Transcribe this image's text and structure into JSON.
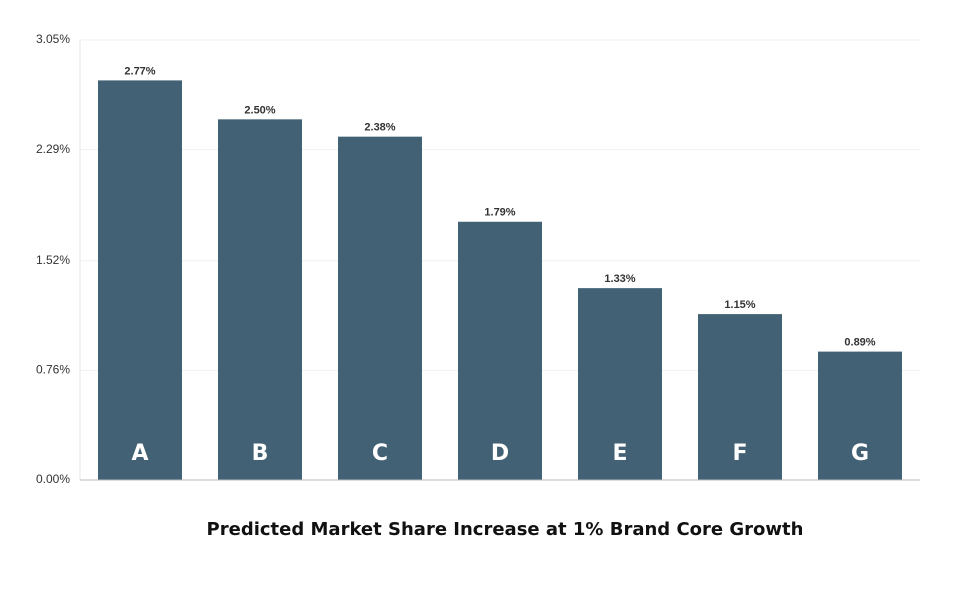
{
  "chart_data": {
    "type": "bar",
    "title": "Predicted Market Share Increase at 1% Brand Core Growth",
    "categories": [
      "A",
      "B",
      "C",
      "D",
      "E",
      "F",
      "G"
    ],
    "values": [
      2.77,
      2.5,
      2.38,
      1.79,
      1.33,
      1.15,
      0.89
    ],
    "value_labels": [
      "2.77%",
      "2.50%",
      "2.38%",
      "1.79%",
      "1.33%",
      "1.15%",
      "0.89%"
    ],
    "color": "#426175",
    "ylim": [
      0,
      3.05
    ],
    "yticks": [
      {
        "value": 0,
        "label": "0.00%"
      },
      {
        "value": 0.76,
        "label": "0.76%"
      },
      {
        "value": 1.52,
        "label": "1.52%"
      },
      {
        "value": 2.29,
        "label": "2.29%"
      },
      {
        "value": 3.05,
        "label": "3.05%"
      }
    ],
    "grid": true
  }
}
